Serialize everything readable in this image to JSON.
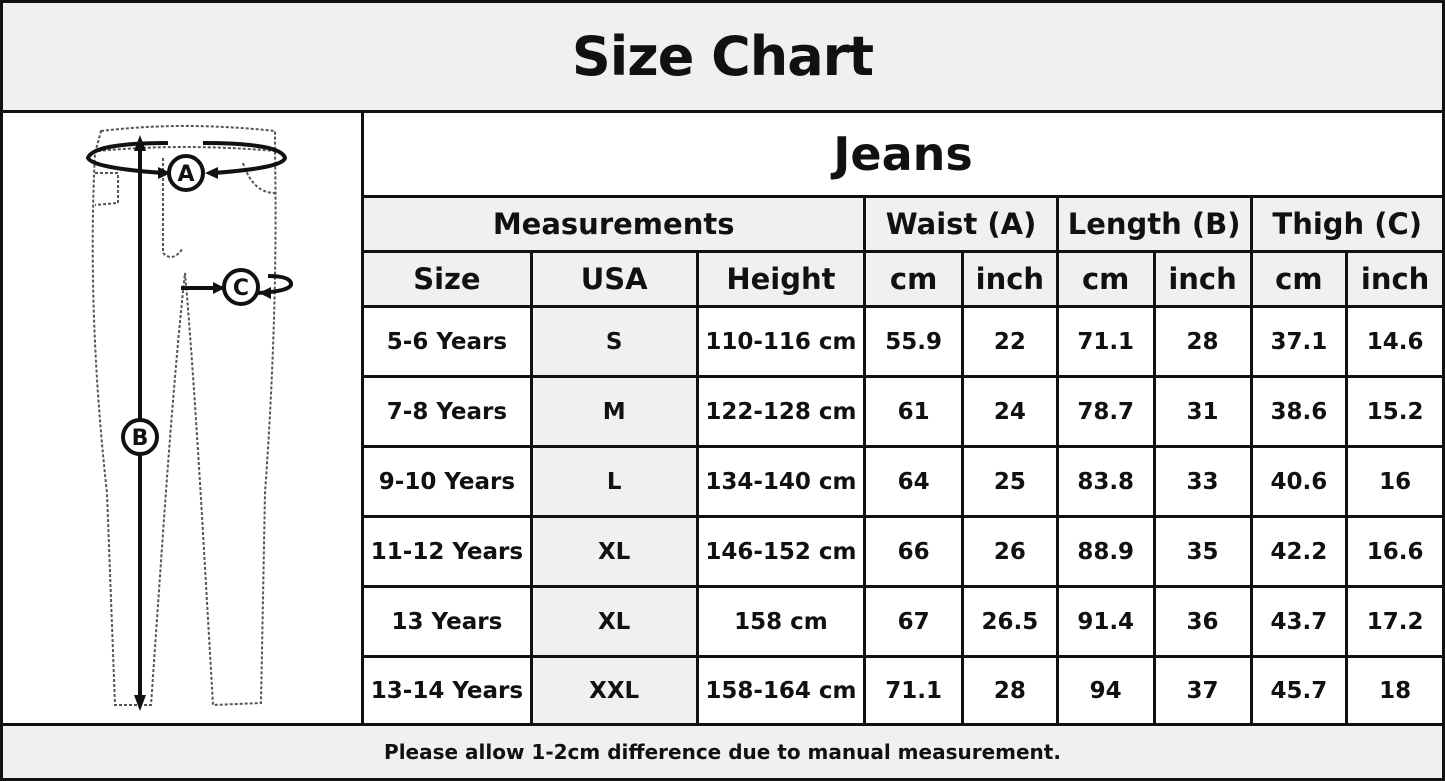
{
  "title": "Size Chart",
  "product": "Jeans",
  "group_headers": [
    "Measurements",
    "Waist (A)",
    "Length (B)",
    "Thigh (C)"
  ],
  "sub_headers": [
    "Size",
    "USA",
    "Height",
    "cm",
    "inch",
    "cm",
    "inch",
    "cm",
    "inch"
  ],
  "rows": [
    [
      "5-6 Years",
      "S",
      "110-116 cm",
      "55.9",
      "22",
      "71.1",
      "28",
      "37.1",
      "14.6"
    ],
    [
      "7-8 Years",
      "M",
      "122-128 cm",
      "61",
      "24",
      "78.7",
      "31",
      "38.6",
      "15.2"
    ],
    [
      "9-10 Years",
      "L",
      "134-140 cm",
      "64",
      "25",
      "83.8",
      "33",
      "40.6",
      "16"
    ],
    [
      "11-12 Years",
      "XL",
      "146-152 cm",
      "66",
      "26",
      "88.9",
      "35",
      "42.2",
      "16.6"
    ],
    [
      "13 Years",
      "XL",
      "158 cm",
      "67",
      "26.5",
      "91.4",
      "36",
      "43.7",
      "17.2"
    ],
    [
      "13-14 Years",
      "XXL",
      "158-164 cm",
      "71.1",
      "28",
      "94",
      "37",
      "45.7",
      "18"
    ]
  ],
  "diagram_labels": {
    "a": "A",
    "b": "B",
    "c": "C"
  },
  "footer": "Please allow 1-2cm difference due to manual measurement.",
  "colors": {
    "header_bg": "#f0f0f0",
    "border": "#111111"
  }
}
